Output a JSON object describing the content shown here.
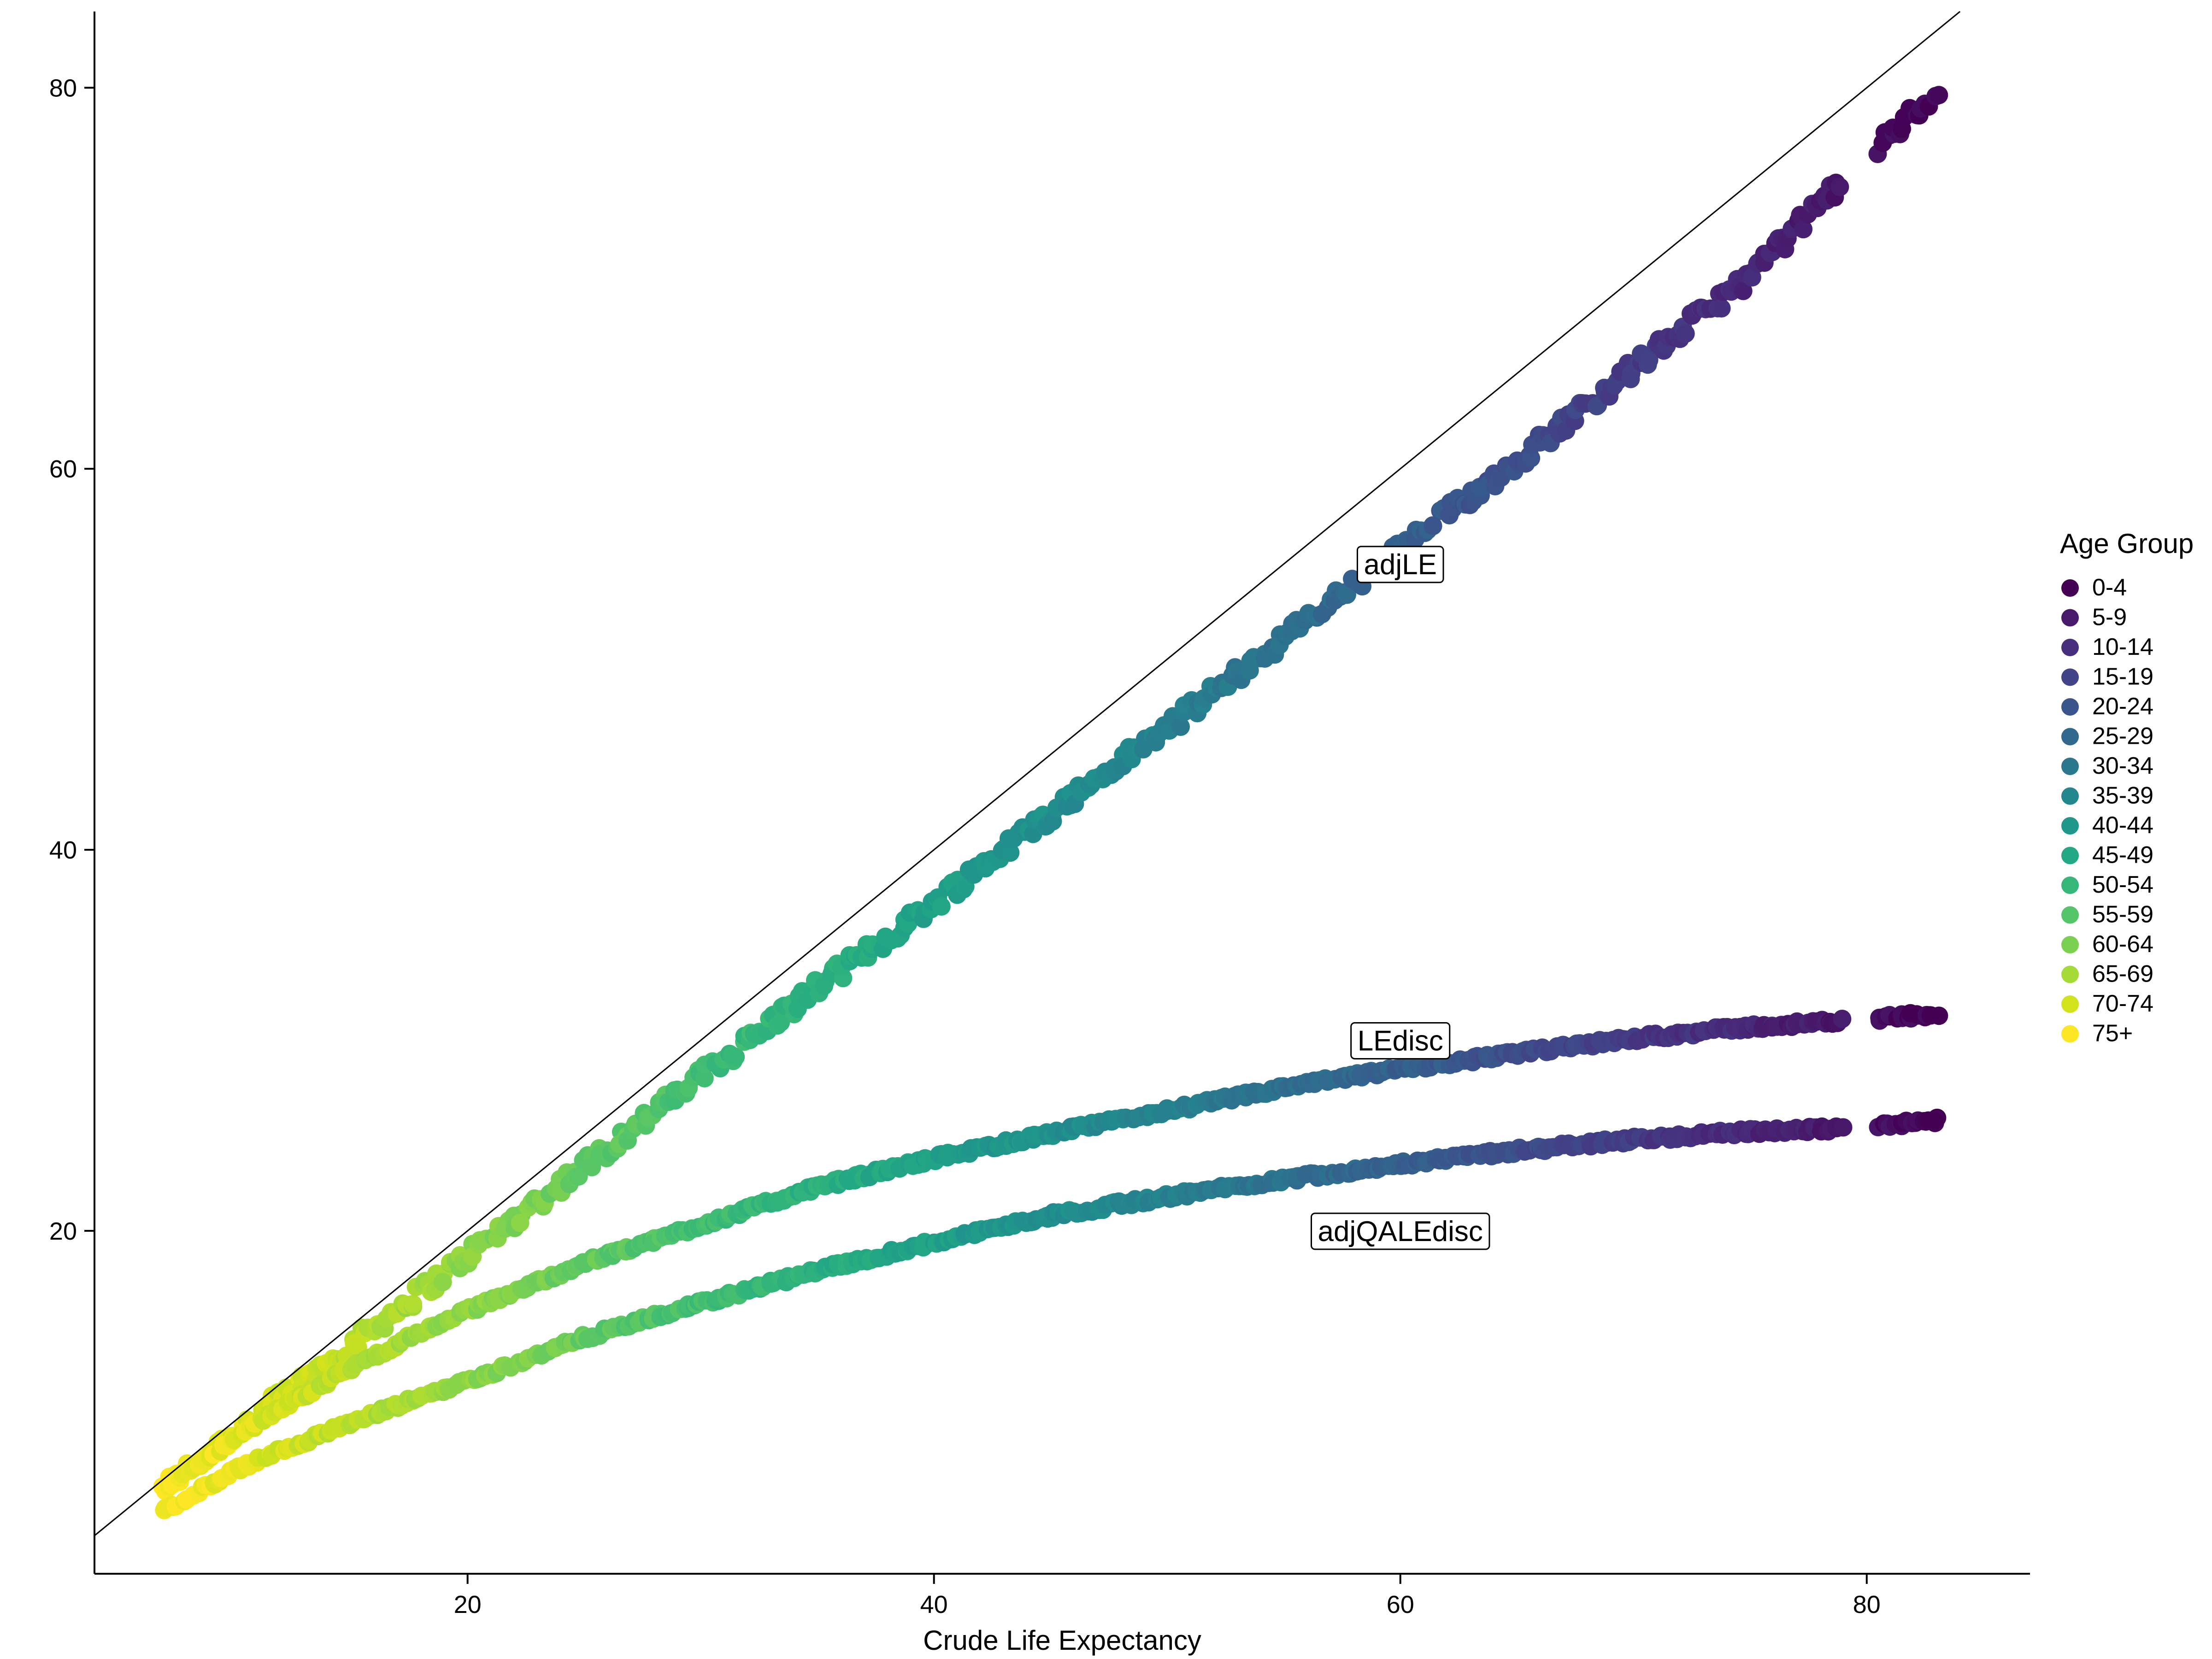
{
  "chart_data": {
    "type": "scatter",
    "title": "",
    "xlabel": "Crude Life Expectancy",
    "ylabel": "",
    "xlim": [
      4,
      87
    ],
    "ylim": [
      2,
      84
    ],
    "xticks": [
      20,
      40,
      60,
      80
    ],
    "yticks": [
      20,
      40,
      60,
      80
    ],
    "grid": false,
    "legend": {
      "title": "Age Group",
      "position": "right",
      "groups": [
        "0-4",
        "5-9",
        "10-14",
        "15-19",
        "20-24",
        "25-29",
        "30-34",
        "35-39",
        "40-44",
        "45-49",
        "50-54",
        "55-59",
        "60-64",
        "65-69",
        "70-74",
        "75+"
      ],
      "colors": [
        "#440154",
        "#481A6C",
        "#472F7D",
        "#414487",
        "#39568C",
        "#31688E",
        "#2A788E",
        "#23888E",
        "#1F988B",
        "#22A884",
        "#35B779",
        "#54C568",
        "#7AD151",
        "#A5DB36",
        "#D2E21B",
        "#FDE725"
      ]
    },
    "reference_line": {
      "x": [
        4,
        87
      ],
      "y": [
        4,
        87
      ]
    },
    "curves": [
      {
        "name": "adjLE",
        "label": "adjLE",
        "label_position": {
          "x": 60,
          "y": 55
        },
        "x": [
          7,
          10,
          12,
          15,
          18,
          20,
          25,
          30,
          33,
          35,
          38,
          40,
          45,
          50,
          55,
          60,
          65,
          70,
          75,
          79,
          81,
          83
        ],
        "y": [
          6.5,
          9.4,
          11.2,
          14,
          16.8,
          18.7,
          23.4,
          28.1,
          30.9,
          32.8,
          35.4,
          37.2,
          41.9,
          46.4,
          51.1,
          55.8,
          60.4,
          65.3,
          70.1,
          75.2,
          77.5,
          79.8
        ],
        "spread": 0.5
      },
      {
        "name": "LEdisc",
        "label": "LEdisc",
        "label_position": {
          "x": 60,
          "y": 30
        },
        "x": [
          7,
          10,
          12,
          15,
          18,
          20,
          25,
          30,
          35,
          40,
          45,
          50,
          55,
          60,
          65,
          70,
          75,
          79,
          81,
          83
        ],
        "y": [
          6.5,
          9.1,
          10.7,
          12.8,
          14.7,
          15.8,
          18.3,
          20.3,
          22.3,
          23.8,
          25.1,
          26.3,
          27.5,
          28.5,
          29.3,
          30.1,
          30.7,
          31.0,
          31.2,
          31.4
        ],
        "spread": 0.15
      },
      {
        "name": "adjQALEdisc",
        "label": "adjQALEdisc",
        "label_position": {
          "x": 60,
          "y": 20
        },
        "x": [
          7,
          10,
          12,
          15,
          18,
          20,
          25,
          30,
          35,
          40,
          45,
          50,
          55,
          60,
          65,
          70,
          75,
          79,
          81,
          83
        ],
        "y": [
          5.3,
          7.4,
          8.5,
          9.9,
          11.3,
          12.1,
          14.4,
          16.2,
          17.9,
          19.4,
          20.8,
          21.8,
          22.7,
          23.5,
          24.2,
          24.8,
          25.2,
          25.4,
          25.6,
          25.8
        ],
        "spread": 0.15
      }
    ]
  }
}
